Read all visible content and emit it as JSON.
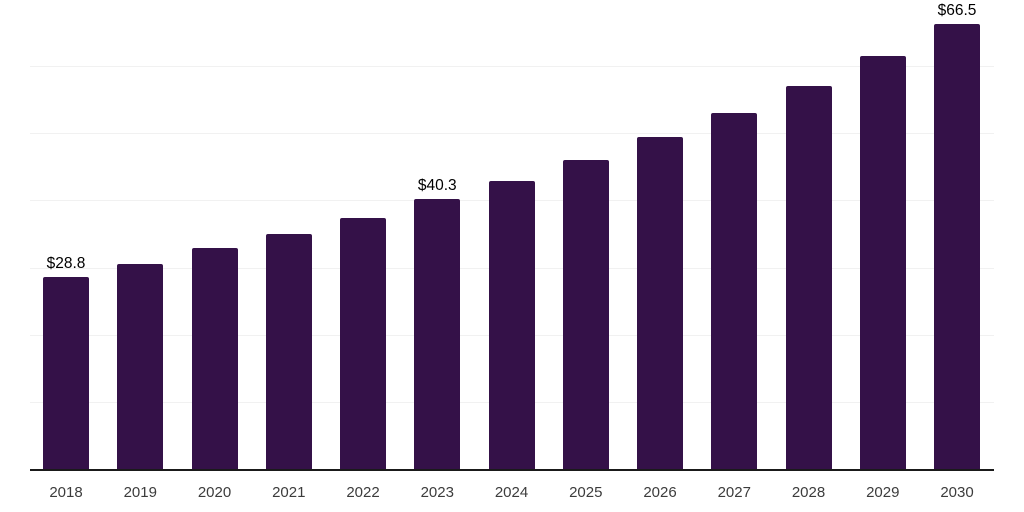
{
  "chart_data": {
    "type": "bar",
    "title": "",
    "xlabel": "",
    "ylabel": "",
    "categories": [
      "2018",
      "2019",
      "2020",
      "2021",
      "2022",
      "2023",
      "2024",
      "2025",
      "2026",
      "2027",
      "2028",
      "2029",
      "2030"
    ],
    "values": [
      28.8,
      30.7,
      33.0,
      35.1,
      37.6,
      40.3,
      43.0,
      46.2,
      49.6,
      53.2,
      57.2,
      61.7,
      66.5
    ],
    "value_labels": [
      "$28.8",
      null,
      null,
      null,
      null,
      "$40.3",
      null,
      null,
      null,
      null,
      null,
      null,
      "$66.5"
    ],
    "ylim": [
      0,
      70
    ],
    "gridline_step": 10,
    "grid": "horizontal",
    "legend": "none",
    "currency_prefix": "$",
    "colors": {
      "bar": "#341148",
      "gridline": "#f1f1f1",
      "axis_line": "#1a1a1a",
      "tick_label": "#3c3c3c",
      "value_label": "#000000"
    }
  }
}
